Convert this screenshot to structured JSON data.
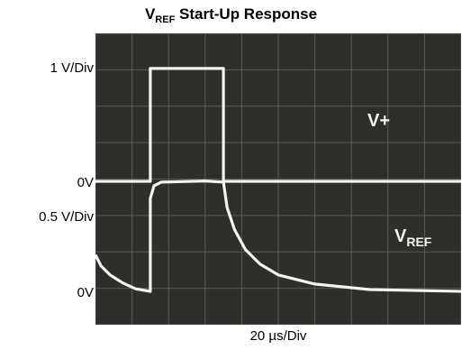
{
  "chart_data": {
    "type": "line",
    "title": {
      "main": "V",
      "sub": "REF",
      "rest": " Start-Up Response"
    },
    "xlabel": "20 µs/Div",
    "grid": true,
    "divisions": {
      "x": 10,
      "y": 8
    },
    "x_range_us": [
      0,
      200
    ],
    "background": "#2e2e2a",
    "grid_color": "#5a5a55",
    "trace_color": "#f4f4ec",
    "channels": [
      {
        "name_main": "V+",
        "name_sub": "",
        "scale_label": "1 V/Div",
        "zero_label": "0V",
        "note": "supply step: 0 V before start-up, then high, then returns to 0 V",
        "x_us": [
          0,
          30,
          30,
          70,
          70,
          200
        ],
        "y_div_above_zero": [
          0,
          0,
          3.1,
          3.1,
          0,
          0
        ]
      },
      {
        "name_main": "V",
        "name_sub": "REF",
        "scale_label": "0.5 V/Div",
        "zero_label": "0V",
        "x_us": [
          0,
          3,
          8,
          15,
          22,
          30,
          30,
          32,
          36,
          60,
          70,
          72,
          76,
          82,
          90,
          100,
          120,
          150,
          200
        ],
        "y_div_above_zero": [
          1.05,
          0.75,
          0.5,
          0.28,
          0.12,
          0.05,
          2.6,
          2.95,
          3.05,
          3.08,
          3.05,
          2.35,
          1.75,
          1.2,
          0.8,
          0.5,
          0.25,
          0.1,
          0.05
        ]
      }
    ]
  }
}
